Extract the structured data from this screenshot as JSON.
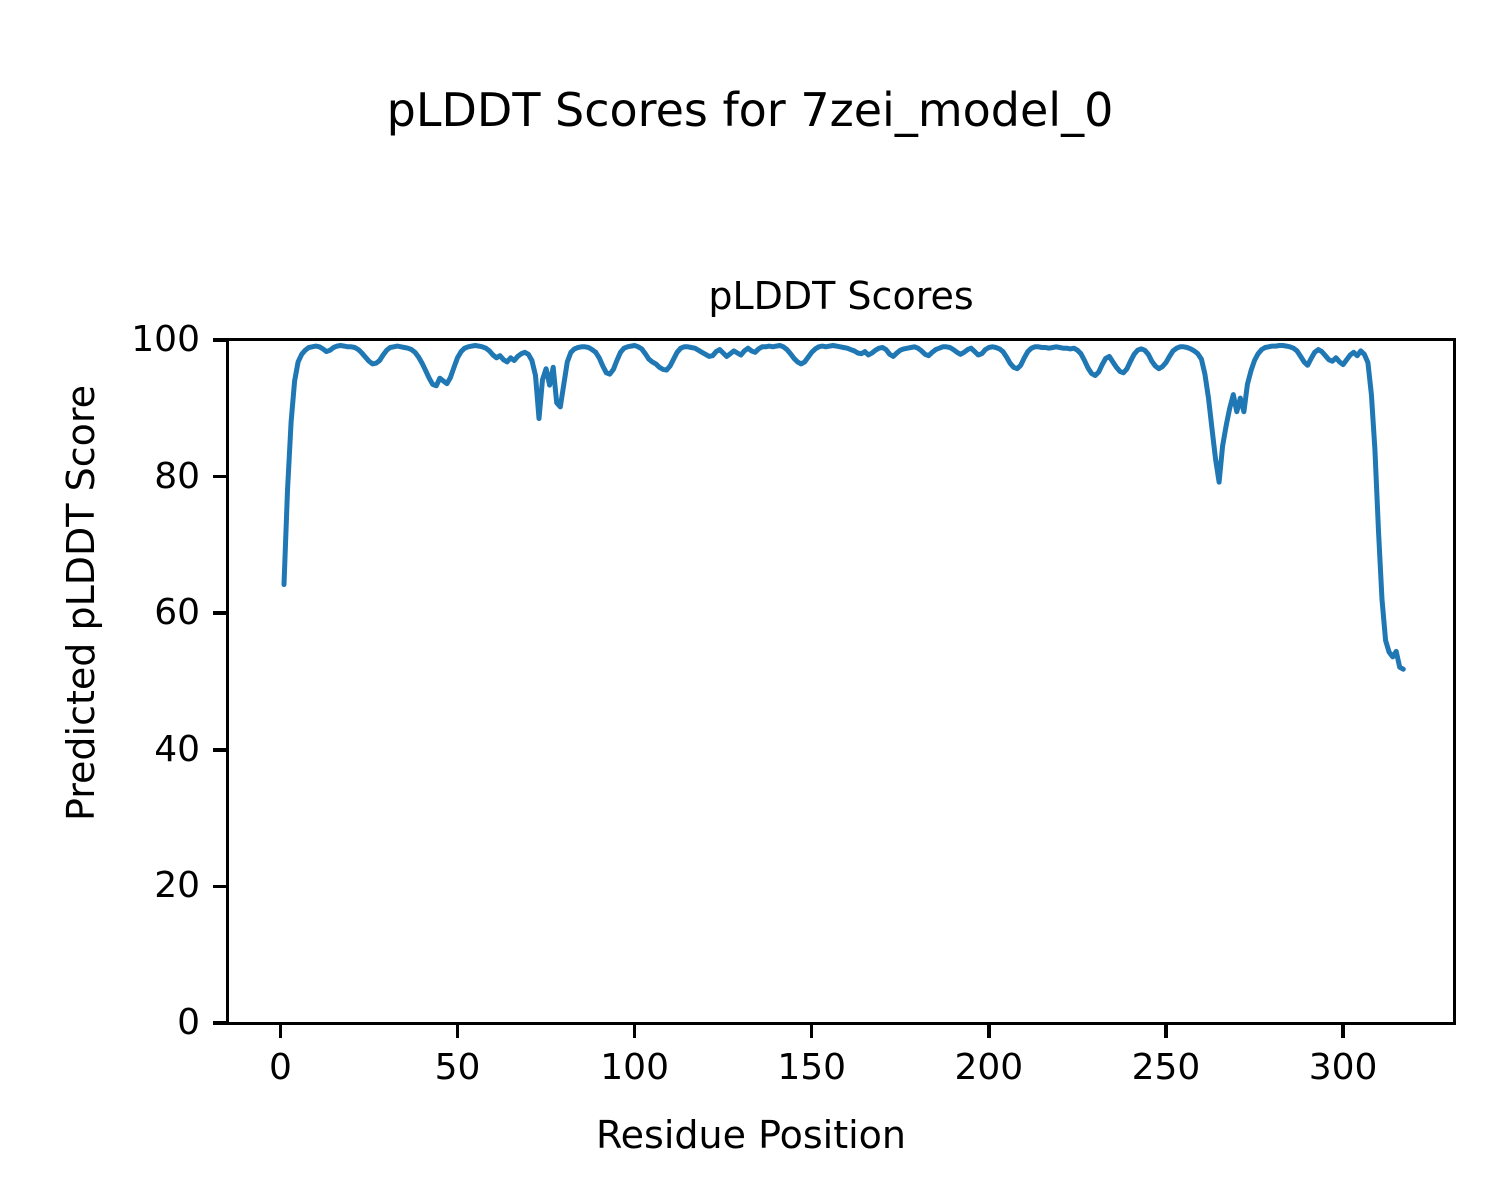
{
  "chart_data": {
    "type": "line",
    "suptitle": "pLDDT Scores for 7zei_model_0",
    "title": "pLDDT Scores",
    "xlabel": "Residue Position",
    "ylabel": "Predicted pLDDT Score",
    "xlim": [
      -14.8,
      331.6
    ],
    "ylim": [
      0,
      100
    ],
    "xticks": [
      0,
      50,
      100,
      150,
      200,
      250,
      300
    ],
    "yticks": [
      0,
      20,
      40,
      60,
      80,
      100
    ],
    "grid": false,
    "legend": "none",
    "line_color": "#1f77b4",
    "series": [
      {
        "name": "pLDDT",
        "x_start": 1,
        "x_step": 1,
        "values": [
          64.2,
          78.0,
          88.0,
          94.0,
          96.8,
          97.9,
          98.5,
          98.9,
          99.0,
          99.1,
          99.0,
          98.7,
          98.3,
          98.5,
          98.9,
          99.1,
          99.2,
          99.1,
          99.0,
          99.0,
          98.9,
          98.6,
          98.1,
          97.5,
          96.9,
          96.5,
          96.6,
          97.0,
          97.8,
          98.5,
          98.9,
          99.0,
          99.1,
          99.0,
          98.9,
          98.8,
          98.6,
          98.2,
          97.5,
          96.6,
          95.5,
          94.4,
          93.5,
          93.3,
          94.4,
          94.0,
          93.6,
          94.5,
          96.0,
          97.4,
          98.3,
          98.8,
          99.0,
          99.1,
          99.2,
          99.1,
          99.0,
          98.8,
          98.4,
          97.8,
          97.4,
          97.7,
          97.1,
          96.8,
          97.4,
          97.0,
          97.6,
          98.0,
          98.2,
          97.9,
          97.0,
          94.8,
          88.5,
          94.2,
          95.8,
          93.4,
          96.0,
          90.8,
          90.2,
          93.5,
          96.8,
          98.2,
          98.7,
          98.9,
          99.0,
          99.0,
          98.9,
          98.6,
          98.2,
          97.4,
          96.2,
          95.2,
          95.0,
          95.7,
          97.0,
          98.2,
          98.8,
          99.0,
          99.1,
          99.2,
          99.0,
          98.7,
          98.0,
          97.2,
          96.8,
          96.5,
          96.0,
          95.7,
          95.6,
          96.2,
          97.2,
          98.2,
          98.8,
          99.0,
          99.0,
          98.9,
          98.8,
          98.5,
          98.2,
          97.9,
          97.6,
          97.7,
          98.3,
          98.6,
          98.1,
          97.6,
          98.0,
          98.4,
          98.1,
          97.8,
          98.4,
          98.8,
          98.4,
          98.2,
          98.7,
          99.0,
          99.0,
          99.1,
          99.0,
          99.1,
          99.2,
          99.0,
          98.6,
          98.0,
          97.3,
          96.8,
          96.5,
          96.8,
          97.5,
          98.2,
          98.7,
          99.0,
          99.1,
          99.0,
          99.1,
          99.2,
          99.1,
          99.0,
          98.9,
          98.8,
          98.6,
          98.4,
          98.1,
          98.0,
          98.3,
          97.8,
          98.1,
          98.5,
          98.8,
          98.9,
          98.6,
          97.9,
          97.6,
          98.1,
          98.5,
          98.7,
          98.8,
          98.9,
          99.0,
          98.8,
          98.4,
          97.9,
          97.7,
          98.2,
          98.6,
          98.8,
          99.0,
          99.0,
          98.9,
          98.6,
          98.2,
          97.9,
          98.2,
          98.6,
          98.8,
          98.3,
          97.8,
          98.0,
          98.6,
          98.9,
          99.0,
          98.9,
          98.7,
          98.3,
          97.5,
          96.6,
          96.0,
          95.8,
          96.3,
          97.4,
          98.3,
          98.8,
          99.0,
          99.0,
          98.9,
          98.9,
          98.8,
          98.9,
          99.0,
          98.9,
          98.8,
          98.8,
          98.7,
          98.8,
          98.5,
          98.0,
          97.0,
          95.9,
          95.1,
          94.8,
          95.3,
          96.4,
          97.3,
          97.6,
          96.8,
          96.0,
          95.4,
          95.2,
          95.8,
          96.9,
          97.9,
          98.5,
          98.7,
          98.5,
          97.9,
          96.9,
          96.2,
          95.8,
          96.1,
          96.7,
          97.6,
          98.4,
          98.8,
          99.0,
          99.0,
          98.9,
          98.7,
          98.4,
          98.0,
          97.2,
          95.0,
          91.5,
          87.0,
          82.5,
          79.2,
          84.5,
          87.5,
          90.0,
          92.0,
          89.5,
          91.5,
          89.5,
          93.5,
          95.5,
          97.0,
          98.0,
          98.6,
          98.9,
          99.0,
          99.1,
          99.1,
          99.2,
          99.2,
          99.1,
          99.0,
          98.8,
          98.4,
          97.6,
          96.8,
          96.3,
          97.3,
          98.2,
          98.6,
          98.3,
          97.7,
          97.1,
          96.9,
          97.4,
          96.8,
          96.4,
          97.1,
          97.8,
          98.2,
          97.7,
          98.4,
          97.9,
          96.7,
          92.0,
          84.0,
          72.0,
          62.0,
          56.0,
          54.3,
          53.6,
          54.4,
          52.1,
          51.8
        ]
      }
    ]
  }
}
